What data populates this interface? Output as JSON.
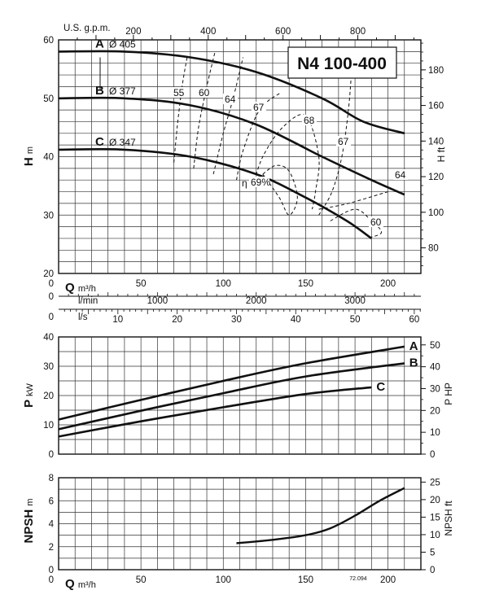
{
  "chart_data": {
    "type": "line",
    "model": "N4 100-400",
    "code": "72.094",
    "flow_axis": {
      "symbol": "Q",
      "unit": "m³/h",
      "ticks": [
        "0",
        "50",
        "100",
        "150",
        "200"
      ],
      "gpm_label": "U.S. g.p.m.",
      "gpm_ticks": [
        "200",
        "400",
        "600",
        "800"
      ],
      "lmin_label": "l/min",
      "lmin_zero": "0",
      "lmin_ticks": [
        "1000",
        "2000",
        "3000"
      ],
      "ls_label": "l/s",
      "ls_zero": "0",
      "ls_ticks": [
        "10",
        "20",
        "30",
        "40",
        "50",
        "60"
      ]
    },
    "head_chart": {
      "ylabel": "H",
      "yunit": "m",
      "yticks": [
        "20",
        "30",
        "40",
        "50",
        "60"
      ],
      "y2label": "H ft",
      "y2ticks": [
        "80",
        "100",
        "120",
        "140",
        "160",
        "180"
      ],
      "ylim": [
        20,
        60
      ],
      "curves": [
        {
          "name": "A",
          "diameter": "Ø 405",
          "points": [
            [
              0,
              58
            ],
            [
              40,
              58
            ],
            [
              80,
              57
            ],
            [
              120,
              54.5
            ],
            [
              160,
              50
            ],
            [
              185,
              46
            ],
            [
              210,
              44
            ]
          ]
        },
        {
          "name": "B",
          "diameter": "Ø 377",
          "points": [
            [
              0,
              50
            ],
            [
              40,
              50
            ],
            [
              80,
              48.8
            ],
            [
              120,
              45.5
            ],
            [
              160,
              40
            ],
            [
              190,
              36
            ],
            [
              210,
              33.5
            ]
          ]
        },
        {
          "name": "C",
          "diameter": "Ø 347",
          "points": [
            [
              0,
              41.2
            ],
            [
              40,
              41.2
            ],
            [
              80,
              40
            ],
            [
              120,
              37
            ],
            [
              150,
              33
            ],
            [
              175,
              29
            ],
            [
              190,
              26
            ]
          ]
        }
      ],
      "efficiency_label": "η",
      "efficiency_contours": [
        {
          "label": "55",
          "points": [
            [
              70,
              39
            ],
            [
              72,
              45
            ],
            [
              75,
              52
            ],
            [
              78,
              57
            ]
          ]
        },
        {
          "label": "60",
          "points": [
            [
              82,
              38
            ],
            [
              85,
              45
            ],
            [
              90,
              52
            ],
            [
              95,
              58
            ]
          ]
        },
        {
          "label": "64",
          "points": [
            [
              94,
              37
            ],
            [
              100,
              44
            ],
            [
              106,
              50
            ],
            [
              112,
              57
            ]
          ]
        },
        {
          "label": "67",
          "points": [
            [
              108,
              36
            ],
            [
              112,
              41
            ],
            [
              122,
              48
            ],
            [
              135,
              51
            ]
          ]
        },
        {
          "label": "68",
          "points": [
            [
              118,
              35
            ],
            [
              124,
              40
            ],
            [
              136,
              45
            ],
            [
              150,
              47
            ],
            [
              158,
              40
            ],
            [
              156,
              34
            ],
            [
              154,
              31
            ]
          ]
        },
        {
          "label": "69%",
          "points": [
            [
              124,
              37
            ],
            [
              132,
              38.5
            ],
            [
              140,
              37.5
            ],
            [
              145,
              33
            ],
            [
              140,
              30
            ],
            [
              134,
              33
            ],
            [
              124,
              37
            ]
          ]
        },
        {
          "label": "67",
          "points": [
            [
              158,
              30
            ],
            [
              166,
              34
            ],
            [
              172,
              40
            ],
            [
              176,
              48
            ],
            [
              178,
              55
            ]
          ]
        },
        {
          "label": "64",
          "points": [
            [
              158,
              31
            ],
            [
              176,
              32
            ],
            [
              200,
              34
            ]
          ]
        },
        {
          "label": "60",
          "points": [
            [
              165,
              29
            ],
            [
              180,
              31
            ],
            [
              190,
              29
            ],
            [
              196,
              27
            ],
            [
              187,
              26
            ]
          ]
        }
      ]
    },
    "power_chart": {
      "ylabel": "P",
      "yunit": "kW",
      "yticks": [
        "0",
        "10",
        "20",
        "30",
        "40"
      ],
      "y2label": "P HP",
      "y2ticks": [
        "0",
        "10",
        "20",
        "30",
        "40",
        "50"
      ],
      "ylim": [
        0,
        40
      ],
      "curves": [
        {
          "name": "A",
          "points": [
            [
              0,
              11.8
            ],
            [
              50,
              18.5
            ],
            [
              100,
              25
            ],
            [
              150,
              31
            ],
            [
              210,
              36.7
            ]
          ]
        },
        {
          "name": "B",
          "points": [
            [
              0,
              8.5
            ],
            [
              50,
              14.8
            ],
            [
              100,
              20.8
            ],
            [
              150,
              26.5
            ],
            [
              210,
              31
            ]
          ]
        },
        {
          "name": "C",
          "points": [
            [
              0,
              6
            ],
            [
              50,
              11.2
            ],
            [
              100,
              16
            ],
            [
              150,
              20.5
            ],
            [
              190,
              22.8
            ]
          ]
        }
      ]
    },
    "npsh_chart": {
      "ylabel": "NPSH",
      "yunit": "m",
      "yticks": [
        "0",
        "2",
        "4",
        "6",
        "8"
      ],
      "y2label": "NPSH ft",
      "y2ticks": [
        "0",
        "5",
        "10",
        "15",
        "20",
        "25"
      ],
      "ylim": [
        0,
        8
      ],
      "points": [
        [
          108,
          2.3
        ],
        [
          130,
          2.6
        ],
        [
          150,
          3
        ],
        [
          165,
          3.6
        ],
        [
          180,
          4.7
        ],
        [
          195,
          6
        ],
        [
          210,
          7.1
        ]
      ]
    }
  }
}
